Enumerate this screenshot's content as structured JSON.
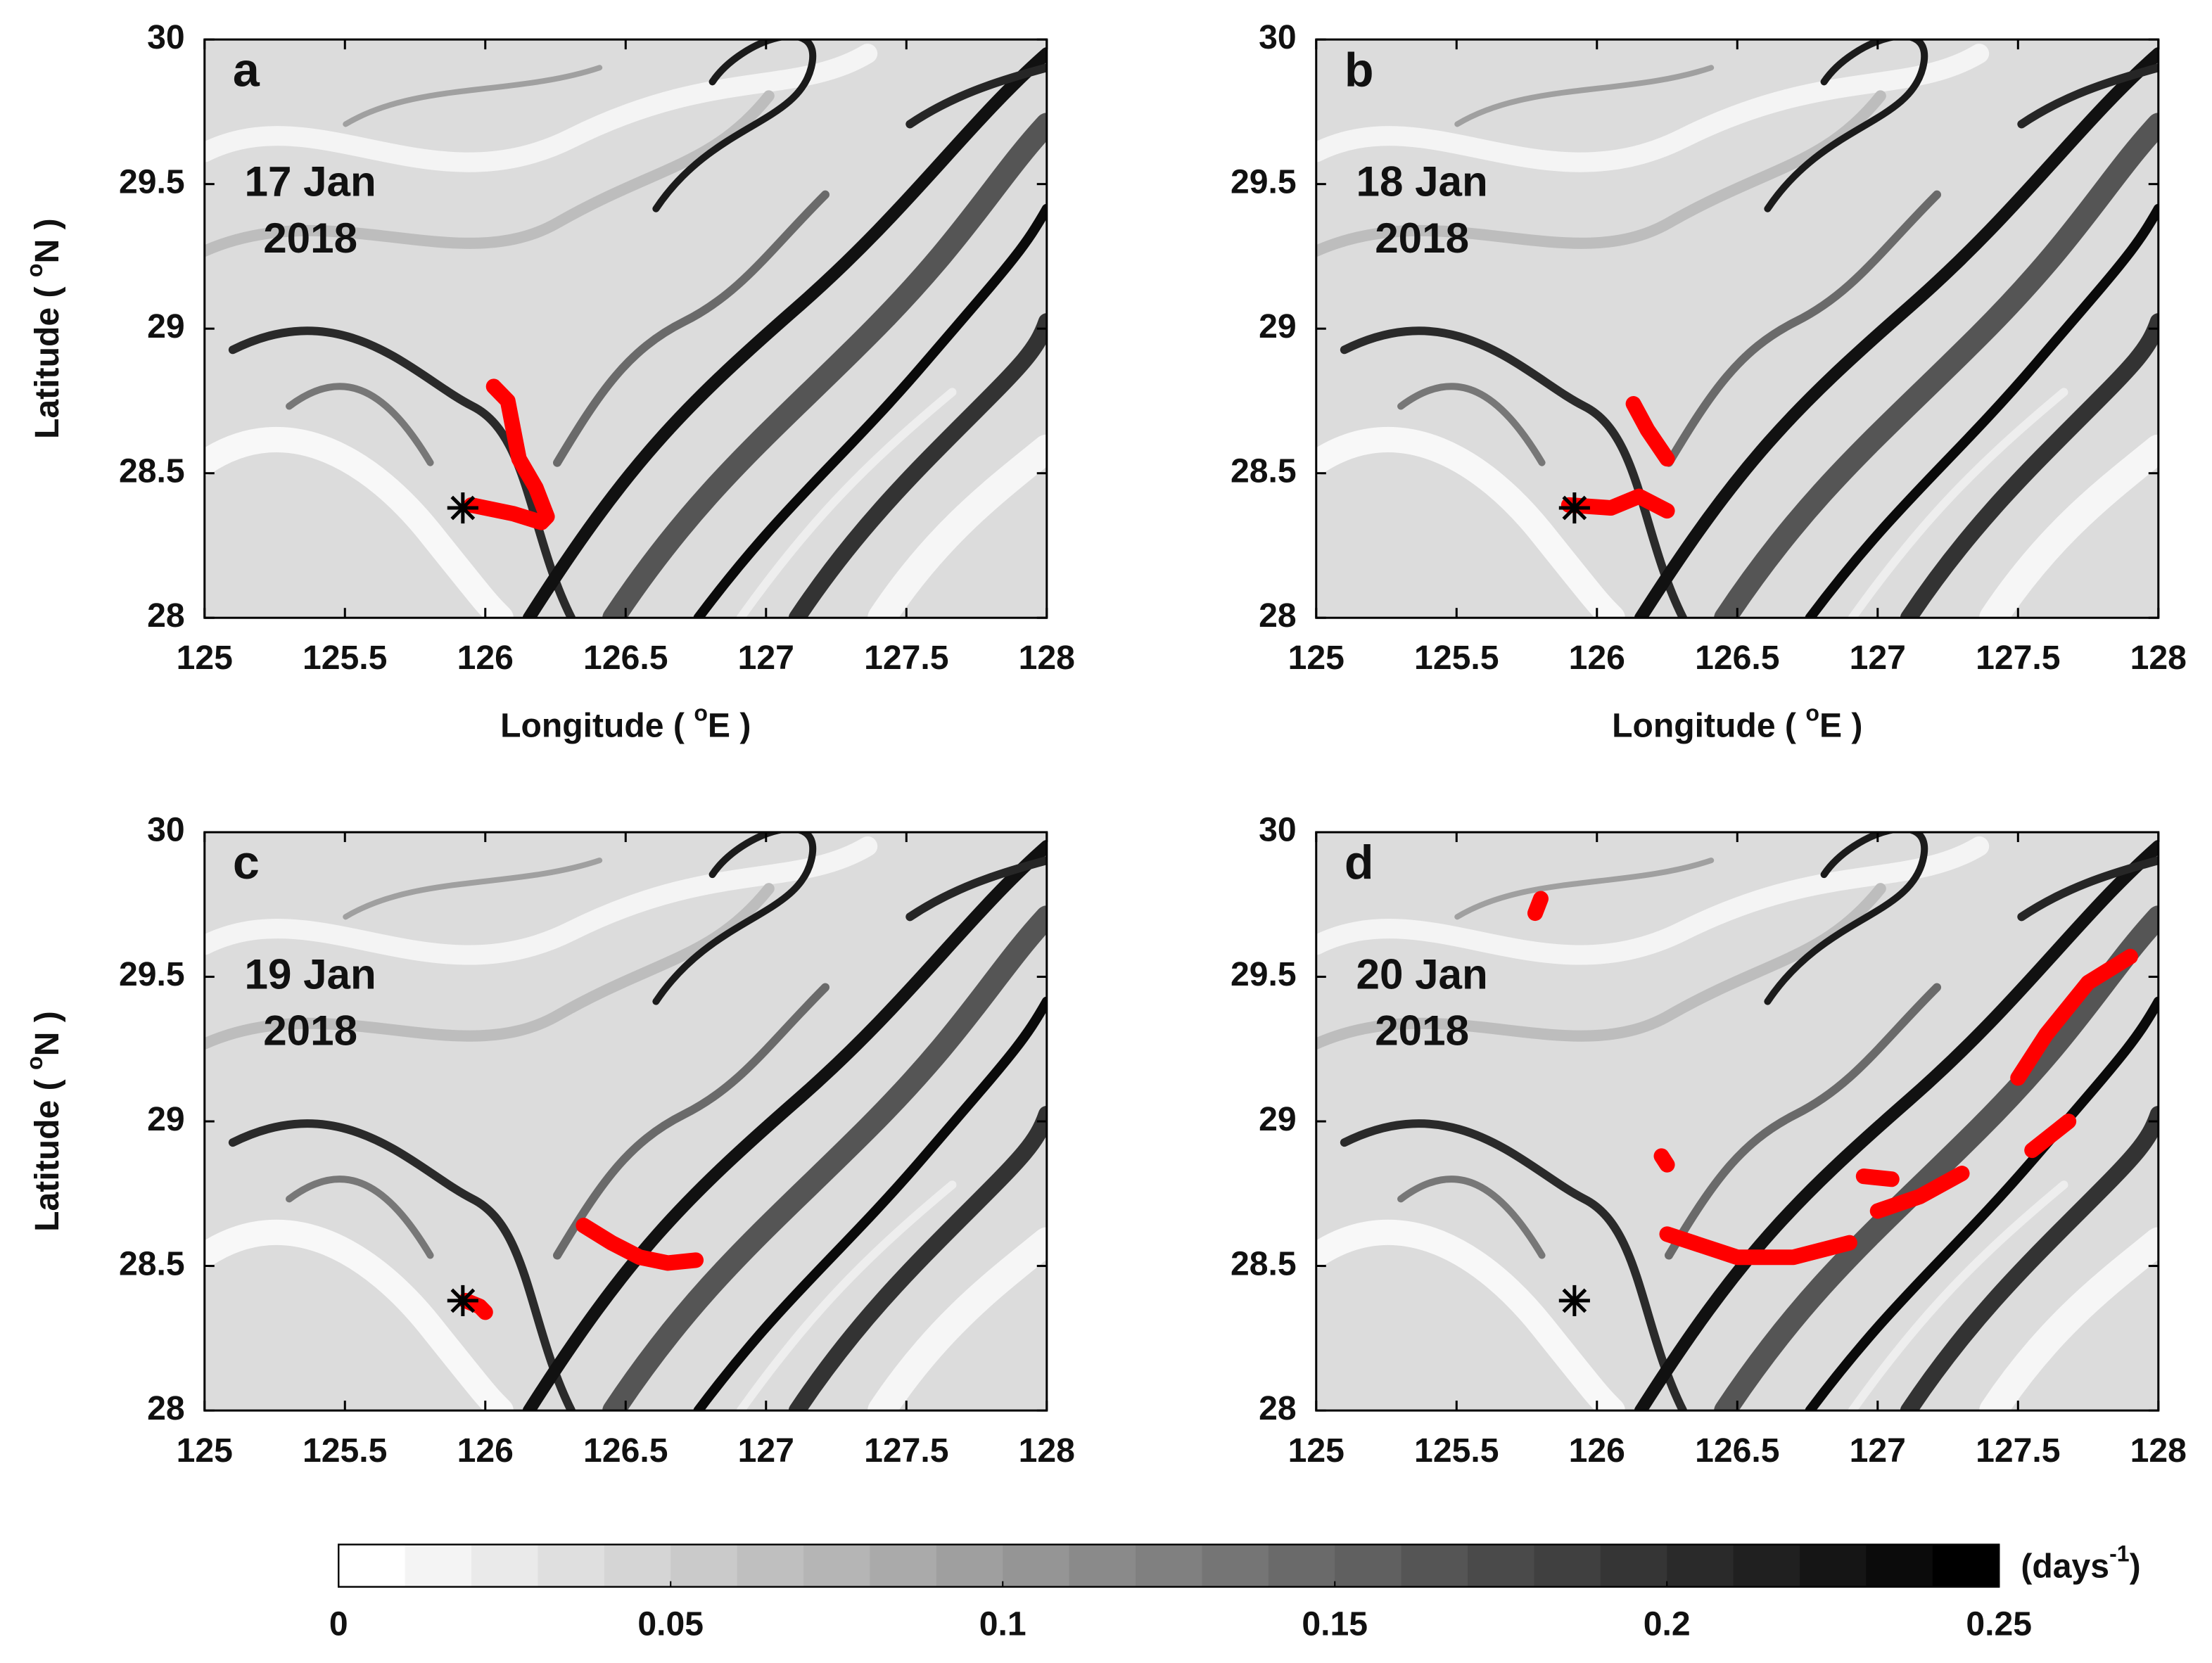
{
  "chart_data": [
    {
      "type": "map",
      "panel_label": "a",
      "annotation": [
        "17 Jan",
        "2018"
      ],
      "xlabel": [
        "Longitude ( ",
        "o",
        "E )"
      ],
      "ylabel": [
        "Latitude ( ",
        "o",
        "N )"
      ],
      "xlim": [
        125,
        128
      ],
      "xticks": [
        125,
        125.5,
        126,
        126.5,
        127,
        127.5,
        128
      ],
      "ylim": [
        28,
        30
      ],
      "yticks": [
        28,
        28.5,
        29,
        29.5,
        30
      ],
      "color": "#ff0000",
      "source": {
        "lon": 125.92,
        "lat": 28.38
      },
      "patches": [
        {
          "lon": [
            126.03,
            126.08,
            126.1,
            126.12,
            126.18,
            126.22,
            126.2,
            126.1,
            125.95
          ],
          "lat": [
            28.8,
            28.75,
            28.65,
            28.55,
            28.45,
            28.35,
            28.33,
            28.36,
            28.39
          ]
        }
      ]
    },
    {
      "type": "map",
      "panel_label": "b",
      "annotation": [
        "18 Jan",
        "2018"
      ],
      "xlabel": [
        "Longitude ( ",
        "o",
        "E )"
      ],
      "xlim": [
        125,
        128
      ],
      "xticks": [
        125,
        125.5,
        126,
        126.5,
        127,
        127.5,
        128
      ],
      "ylim": [
        28,
        30
      ],
      "yticks": [
        28,
        28.5,
        29,
        29.5,
        30
      ],
      "color": "#ff0000",
      "source": {
        "lon": 125.92,
        "lat": 28.38
      },
      "patches": [
        {
          "lon": [
            126.13,
            126.18,
            126.25
          ],
          "lat": [
            28.74,
            28.65,
            28.55
          ]
        },
        {
          "lon": [
            125.9,
            126.05,
            126.15,
            126.25
          ],
          "lat": [
            28.39,
            28.38,
            28.42,
            28.37
          ]
        }
      ]
    },
    {
      "type": "map",
      "panel_label": "c",
      "annotation": [
        "19 Jan",
        "2018"
      ],
      "ylabel": [
        "Latitude ( ",
        "o",
        "N )"
      ],
      "xlim": [
        125,
        128
      ],
      "xticks": [
        125,
        125.5,
        126,
        126.5,
        127,
        127.5,
        128
      ],
      "ylim": [
        28,
        30
      ],
      "yticks": [
        28,
        28.5,
        29,
        29.5,
        30
      ],
      "color": "#ff0000",
      "source": {
        "lon": 125.92,
        "lat": 28.38
      },
      "patches": [
        {
          "lon": [
            126.35,
            126.45,
            126.55,
            126.65,
            126.75
          ],
          "lat": [
            28.64,
            28.58,
            28.53,
            28.51,
            28.52
          ]
        },
        {
          "lon": [
            125.93,
            125.98,
            126.0
          ],
          "lat": [
            28.38,
            28.36,
            28.34
          ]
        }
      ]
    },
    {
      "type": "map",
      "panel_label": "d",
      "annotation": [
        "20 Jan",
        "2018"
      ],
      "xlim": [
        125,
        128
      ],
      "xticks": [
        125,
        125.5,
        126,
        126.5,
        127,
        127.5,
        128
      ],
      "ylim": [
        28,
        30
      ],
      "yticks": [
        28,
        28.5,
        29,
        29.5,
        30
      ],
      "color": "#ff0000",
      "source": {
        "lon": 125.92,
        "lat": 28.38
      },
      "patches": [
        {
          "lon": [
            125.78,
            125.8
          ],
          "lat": [
            29.72,
            29.77
          ]
        },
        {
          "lon": [
            126.25,
            126.5,
            126.7,
            126.9
          ],
          "lat": [
            28.61,
            28.53,
            28.53,
            28.58
          ]
        },
        {
          "lon": [
            126.95,
            127.05
          ],
          "lat": [
            28.81,
            28.8
          ]
        },
        {
          "lon": [
            127.0,
            127.15,
            127.3
          ],
          "lat": [
            28.69,
            28.74,
            28.82
          ]
        },
        {
          "lon": [
            127.5,
            127.6,
            127.75,
            127.9
          ],
          "lat": [
            29.15,
            29.3,
            29.48,
            29.57
          ]
        },
        {
          "lon": [
            127.55,
            127.68
          ],
          "lat": [
            28.9,
            29.0
          ]
        },
        {
          "lon": [
            126.23,
            126.25
          ],
          "lat": [
            28.88,
            28.85
          ]
        }
      ]
    },
    {
      "type": "colorbar",
      "lim": [
        0,
        0.25
      ],
      "ticks": [
        0,
        0.05,
        0.1,
        0.15,
        0.2,
        0.25
      ],
      "levels": 25,
      "unit": [
        "(days",
        "-1",
        ")"
      ]
    }
  ]
}
